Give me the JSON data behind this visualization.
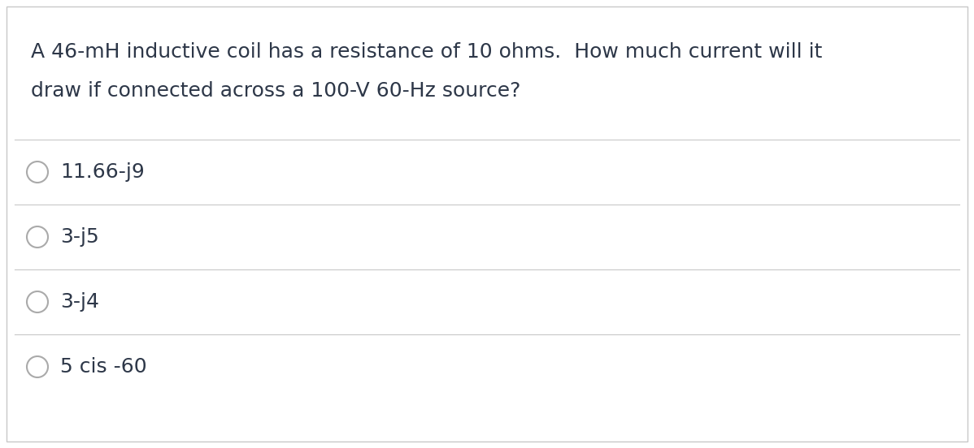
{
  "question_line1": "A 46-mH inductive coil has a resistance of 10 ohms.  How much current will it",
  "question_line2": "draw if connected across a 100-V 60-Hz source?",
  "options": [
    "11.66-j9",
    "3-j5",
    "3-j4",
    "5 cis -60"
  ],
  "bg_color": "#ffffff",
  "border_color": "#c8c8c8",
  "text_color": "#2d3748",
  "line_color": "#c8c8c8",
  "circle_edge_color": "#aaaaaa",
  "question_fontsize": 18,
  "option_fontsize": 18,
  "figsize": [
    11.98,
    5.52
  ],
  "dpi": 100
}
